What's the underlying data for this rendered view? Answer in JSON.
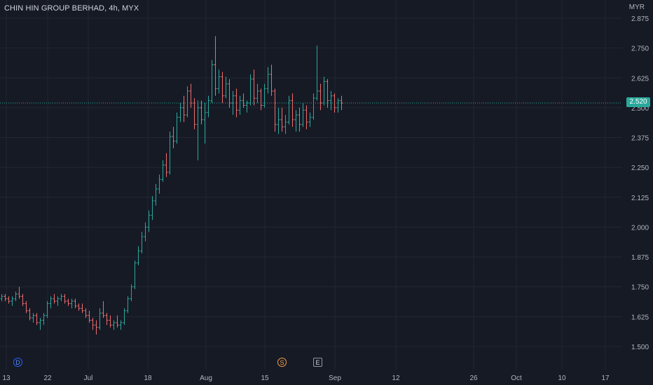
{
  "header": {
    "symbol_title": "CHIN HIN GROUP BERHAD, 4h, MYX",
    "currency": "MYR"
  },
  "last_price": {
    "value": 2.52,
    "label": "2.520",
    "color": "#2aa89b"
  },
  "markers": {
    "dividend": "D",
    "split": "S",
    "earnings": "E"
  },
  "colors": {
    "background": "#161a25",
    "grid": "#232734",
    "up": "#2aa89b",
    "down": "#ee6b6b",
    "axis_text": "#b2b5be"
  },
  "chart_data": {
    "type": "ohlc",
    "interval": "4h",
    "y_axis": {
      "ticks": [
        2.875,
        2.75,
        2.625,
        2.5,
        2.375,
        2.25,
        2.125,
        2.0,
        1.875,
        1.75,
        1.625,
        1.5
      ],
      "tick_labels": [
        "2.875",
        "2.750",
        "2.625",
        "2.500",
        "2.375",
        "2.250",
        "2.125",
        "2.000",
        "1.875",
        "1.750",
        "1.625",
        "1.500"
      ],
      "range": [
        1.45,
        2.93
      ]
    },
    "x_axis": {
      "tick_labels": [
        "13",
        "22",
        "Jul",
        "18",
        "Aug",
        "15",
        "Sep",
        "12",
        "26",
        "Oct",
        "10",
        "17"
      ]
    },
    "bars": [
      [
        1.7,
        1.72,
        1.69,
        1.71
      ],
      [
        1.71,
        1.72,
        1.69,
        1.7
      ],
      [
        1.7,
        1.71,
        1.68,
        1.69
      ],
      [
        1.69,
        1.71,
        1.67,
        1.7
      ],
      [
        1.7,
        1.73,
        1.69,
        1.72
      ],
      [
        1.72,
        1.75,
        1.7,
        1.71
      ],
      [
        1.71,
        1.72,
        1.67,
        1.68
      ],
      [
        1.68,
        1.69,
        1.64,
        1.65
      ],
      [
        1.65,
        1.66,
        1.61,
        1.62
      ],
      [
        1.62,
        1.64,
        1.6,
        1.63
      ],
      [
        1.63,
        1.64,
        1.59,
        1.6
      ],
      [
        1.6,
        1.62,
        1.57,
        1.61
      ],
      [
        1.61,
        1.64,
        1.59,
        1.63
      ],
      [
        1.63,
        1.69,
        1.62,
        1.68
      ],
      [
        1.68,
        1.71,
        1.66,
        1.7
      ],
      [
        1.7,
        1.72,
        1.68,
        1.69
      ],
      [
        1.69,
        1.71,
        1.67,
        1.7
      ],
      [
        1.7,
        1.72,
        1.69,
        1.71
      ],
      [
        1.71,
        1.72,
        1.68,
        1.69
      ],
      [
        1.69,
        1.7,
        1.67,
        1.68
      ],
      [
        1.68,
        1.7,
        1.66,
        1.69
      ],
      [
        1.69,
        1.7,
        1.66,
        1.67
      ],
      [
        1.67,
        1.68,
        1.65,
        1.66
      ],
      [
        1.66,
        1.68,
        1.64,
        1.65
      ],
      [
        1.65,
        1.66,
        1.62,
        1.63
      ],
      [
        1.63,
        1.65,
        1.6,
        1.61
      ],
      [
        1.61,
        1.62,
        1.57,
        1.59
      ],
      [
        1.59,
        1.61,
        1.55,
        1.58
      ],
      [
        1.58,
        1.66,
        1.57,
        1.64
      ],
      [
        1.64,
        1.69,
        1.62,
        1.63
      ],
      [
        1.63,
        1.64,
        1.59,
        1.61
      ],
      [
        1.61,
        1.63,
        1.58,
        1.59
      ],
      [
        1.59,
        1.61,
        1.57,
        1.6
      ],
      [
        1.6,
        1.63,
        1.58,
        1.59
      ],
      [
        1.59,
        1.61,
        1.57,
        1.6
      ],
      [
        1.6,
        1.66,
        1.59,
        1.65
      ],
      [
        1.65,
        1.71,
        1.64,
        1.7
      ],
      [
        1.7,
        1.76,
        1.69,
        1.75
      ],
      [
        1.75,
        1.86,
        1.74,
        1.85
      ],
      [
        1.85,
        1.92,
        1.84,
        1.9
      ],
      [
        1.9,
        1.98,
        1.89,
        1.96
      ],
      [
        1.96,
        2.02,
        1.94,
        2.0
      ],
      [
        2.0,
        2.07,
        1.98,
        2.05
      ],
      [
        2.05,
        2.13,
        2.03,
        2.11
      ],
      [
        2.11,
        2.18,
        2.09,
        2.16
      ],
      [
        2.16,
        2.22,
        2.14,
        2.2
      ],
      [
        2.2,
        2.28,
        2.19,
        2.26
      ],
      [
        2.26,
        2.31,
        2.21,
        2.23
      ],
      [
        2.23,
        2.4,
        2.22,
        2.38
      ],
      [
        2.38,
        2.42,
        2.33,
        2.36
      ],
      [
        2.36,
        2.48,
        2.35,
        2.46
      ],
      [
        2.46,
        2.52,
        2.44,
        2.5
      ],
      [
        2.5,
        2.55,
        2.44,
        2.47
      ],
      [
        2.47,
        2.59,
        2.46,
        2.57
      ],
      [
        2.57,
        2.6,
        2.5,
        2.52
      ],
      [
        2.52,
        2.54,
        2.41,
        2.43
      ],
      [
        2.43,
        2.53,
        2.28,
        2.5
      ],
      [
        2.5,
        2.53,
        2.43,
        2.45
      ],
      [
        2.45,
        2.52,
        2.35,
        2.48
      ],
      [
        2.48,
        2.55,
        2.46,
        2.53
      ],
      [
        2.53,
        2.7,
        2.52,
        2.68
      ],
      [
        2.68,
        2.8,
        2.55,
        2.58
      ],
      [
        2.58,
        2.66,
        2.56,
        2.63
      ],
      [
        2.63,
        2.65,
        2.52,
        2.55
      ],
      [
        2.55,
        2.63,
        2.54,
        2.6
      ],
      [
        2.6,
        2.62,
        2.5,
        2.52
      ],
      [
        2.52,
        2.57,
        2.47,
        2.55
      ],
      [
        2.55,
        2.58,
        2.46,
        2.49
      ],
      [
        2.49,
        2.55,
        2.47,
        2.53
      ],
      [
        2.53,
        2.56,
        2.5,
        2.51
      ],
      [
        2.51,
        2.53,
        2.48,
        2.52
      ],
      [
        2.52,
        2.64,
        2.51,
        2.62
      ],
      [
        2.62,
        2.66,
        2.51,
        2.54
      ],
      [
        2.54,
        2.6,
        2.52,
        2.57
      ],
      [
        2.57,
        2.58,
        2.49,
        2.51
      ],
      [
        2.51,
        2.6,
        2.5,
        2.58
      ],
      [
        2.58,
        2.67,
        2.56,
        2.64
      ],
      [
        2.64,
        2.68,
        2.55,
        2.57
      ],
      [
        2.57,
        2.58,
        2.4,
        2.43
      ],
      [
        2.43,
        2.5,
        2.39,
        2.45
      ],
      [
        2.45,
        2.5,
        2.4,
        2.42
      ],
      [
        2.42,
        2.47,
        2.39,
        2.44
      ],
      [
        2.44,
        2.55,
        2.43,
        2.53
      ],
      [
        2.53,
        2.56,
        2.42,
        2.45
      ],
      [
        2.45,
        2.49,
        2.4,
        2.47
      ],
      [
        2.47,
        2.5,
        2.4,
        2.43
      ],
      [
        2.43,
        2.52,
        2.42,
        2.49
      ],
      [
        2.49,
        2.51,
        2.41,
        2.44
      ],
      [
        2.44,
        2.48,
        2.42,
        2.46
      ],
      [
        2.46,
        2.56,
        2.45,
        2.54
      ],
      [
        2.54,
        2.76,
        2.53,
        2.57
      ],
      [
        2.57,
        2.6,
        2.49,
        2.52
      ],
      [
        2.52,
        2.63,
        2.51,
        2.61
      ],
      [
        2.61,
        2.62,
        2.5,
        2.53
      ],
      [
        2.53,
        2.57,
        2.49,
        2.55
      ],
      [
        2.55,
        2.56,
        2.48,
        2.5
      ],
      [
        2.5,
        2.54,
        2.48,
        2.53
      ],
      [
        2.53,
        2.55,
        2.49,
        2.52
      ]
    ]
  }
}
